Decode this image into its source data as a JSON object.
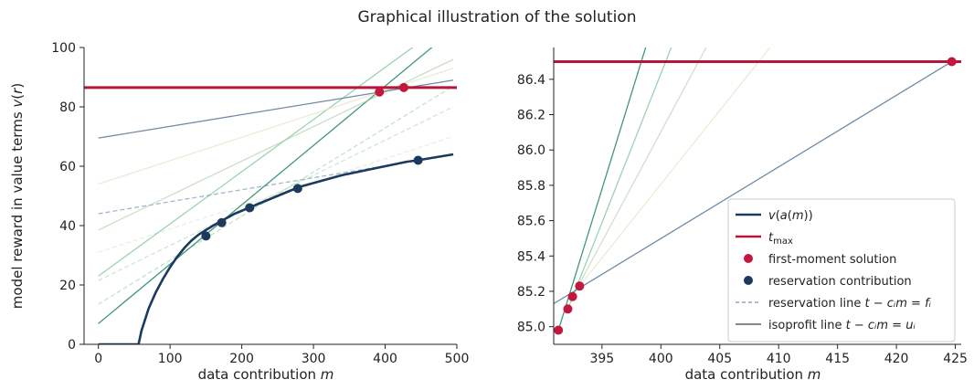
{
  "figure": {
    "title": "Graphical illustration of the solution"
  },
  "chart_data": [
    {
      "type": "line",
      "panel": "left",
      "xlabel": "data contribution m",
      "ylabel": "model reward in value terms v(r)",
      "xlim": [
        -20,
        500
      ],
      "ylim": [
        0,
        100
      ],
      "xticks": [
        0,
        100,
        200,
        300,
        400,
        500
      ],
      "yticks": [
        0,
        20,
        40,
        60,
        80,
        100
      ],
      "xtick_labels": [
        "0",
        "100",
        "200",
        "300",
        "400",
        "500"
      ],
      "ytick_labels": [
        "0",
        "20",
        "40",
        "60",
        "80",
        "100"
      ],
      "grid": false,
      "curve_v": {
        "name": "v(a(m))",
        "color": "#1c3a5e",
        "x": [
          0,
          56,
          60,
          70,
          80,
          90,
          100,
          110,
          120,
          130,
          140,
          150,
          160,
          175,
          190,
          210,
          230,
          250,
          280,
          310,
          340,
          370,
          400,
          430,
          445,
          470,
          495
        ],
        "y": [
          0,
          0,
          4.5,
          12,
          17.5,
          22,
          26,
          29.5,
          32.5,
          35,
          37,
          38.5,
          40,
          42,
          44,
          46,
          48,
          50,
          53,
          55,
          57,
          58.5,
          60,
          61.5,
          62,
          63,
          64
        ]
      },
      "t_max": {
        "name": "t_max",
        "value": 86.5,
        "color": "#b5163a"
      },
      "reservation_points": {
        "name": "reservation contribution",
        "color": "#1c3a5e",
        "x": [
          150,
          172,
          211,
          278,
          446
        ],
        "y": [
          36.5,
          41,
          46,
          52.5,
          62
        ]
      },
      "solution_points": {
        "name": "first-moment solution",
        "color": "#c2173f",
        "x": [
          392,
          426
        ],
        "y": [
          85,
          86.5
        ]
      },
      "isoprofit_lines": [
        {
          "x": [
            0,
            495
          ],
          "y": [
            7,
            106
          ],
          "color": "#2e8b6f",
          "opacity": 0.9
        },
        {
          "x": [
            0,
            495
          ],
          "y": [
            23,
            110
          ],
          "color": "#72c08f",
          "opacity": 0.7
        },
        {
          "x": [
            0,
            495
          ],
          "y": [
            38.5,
            96
          ],
          "color": "#a8c9a0",
          "opacity": 0.6
        },
        {
          "x": [
            0,
            495
          ],
          "y": [
            54,
            93
          ],
          "color": "#e3e6c4",
          "opacity": 0.75
        },
        {
          "x": [
            0,
            495
          ],
          "y": [
            69.5,
            89
          ],
          "color": "#5f7d9b",
          "opacity": 0.9
        }
      ],
      "reservation_lines": [
        {
          "x": [
            0,
            495
          ],
          "y": [
            13.5,
            87
          ],
          "color": "#7ec9a0",
          "opacity": 0.5
        },
        {
          "x": [
            0,
            495
          ],
          "y": [
            21.5,
            80
          ],
          "color": "#9fd0ad",
          "opacity": 0.5
        },
        {
          "x": [
            0,
            495
          ],
          "y": [
            31,
            70
          ],
          "color": "#d8e8cc",
          "opacity": 0.6
        },
        {
          "x": [
            0,
            495
          ],
          "y": [
            44,
            64
          ],
          "color": "#8fa4bf",
          "opacity": 0.8
        }
      ]
    },
    {
      "type": "line",
      "panel": "right",
      "xlabel": "data contribution m",
      "xlim": [
        390.9,
        425.5
      ],
      "ylim": [
        84.9,
        86.58
      ],
      "xticks": [
        395,
        400,
        405,
        410,
        415,
        420,
        425
      ],
      "yticks": [
        85.0,
        85.2,
        85.4,
        85.6,
        85.8,
        86.0,
        86.2,
        86.4
      ],
      "xtick_labels": [
        "395",
        "400",
        "405",
        "410",
        "415",
        "420",
        "425"
      ],
      "ytick_labels": [
        "85.0",
        "85.2",
        "85.4",
        "85.6",
        "85.8",
        "86.0",
        "86.2",
        "86.4"
      ],
      "grid": false,
      "t_max": {
        "value": 86.5,
        "color": "#b5163a"
      },
      "solution_points": {
        "color": "#c2173f",
        "x": [
          391.3,
          392.1,
          392.5,
          393.1,
          424.7
        ],
        "y": [
          84.98,
          85.1,
          85.17,
          85.23,
          86.5
        ]
      },
      "isoprofit_lines": [
        {
          "x": [
            391.3,
            398.8
          ],
          "y": [
            84.98,
            86.6
          ],
          "color": "#2e8b6f",
          "opacity": 0.9
        },
        {
          "x": [
            392.1,
            401.0
          ],
          "y": [
            85.1,
            86.6
          ],
          "color": "#72c08f",
          "opacity": 0.7
        },
        {
          "x": [
            392.5,
            404.0
          ],
          "y": [
            85.17,
            86.6
          ],
          "color": "#a8c9a0",
          "opacity": 0.55
        },
        {
          "x": [
            393.1,
            409.5
          ],
          "y": [
            85.23,
            86.6
          ],
          "color": "#e3e6c4",
          "opacity": 0.75
        },
        {
          "x": [
            390.9,
            424.7
          ],
          "y": [
            85.13,
            86.5
          ],
          "color": "#5f7d9b",
          "opacity": 0.9
        }
      ],
      "legend": {
        "placement": "lower-right",
        "entries": [
          {
            "label": "v(a(m))",
            "kind": "line",
            "color": "#1c3a5e"
          },
          {
            "label": "t_max",
            "kind": "line",
            "color": "#b5163a"
          },
          {
            "label": "first-moment solution",
            "kind": "dot",
            "color": "#c2173f"
          },
          {
            "label": "reservation contribution",
            "kind": "dot",
            "color": "#1c3a5e"
          },
          {
            "label": "reservation line t − cᵢm = fᵢ",
            "kind": "dashed",
            "color": "#8fa4bf"
          },
          {
            "label": "isoprofit line t − cᵢm = uᵢ",
            "kind": "thin",
            "color": "#111111"
          }
        ]
      }
    }
  ]
}
